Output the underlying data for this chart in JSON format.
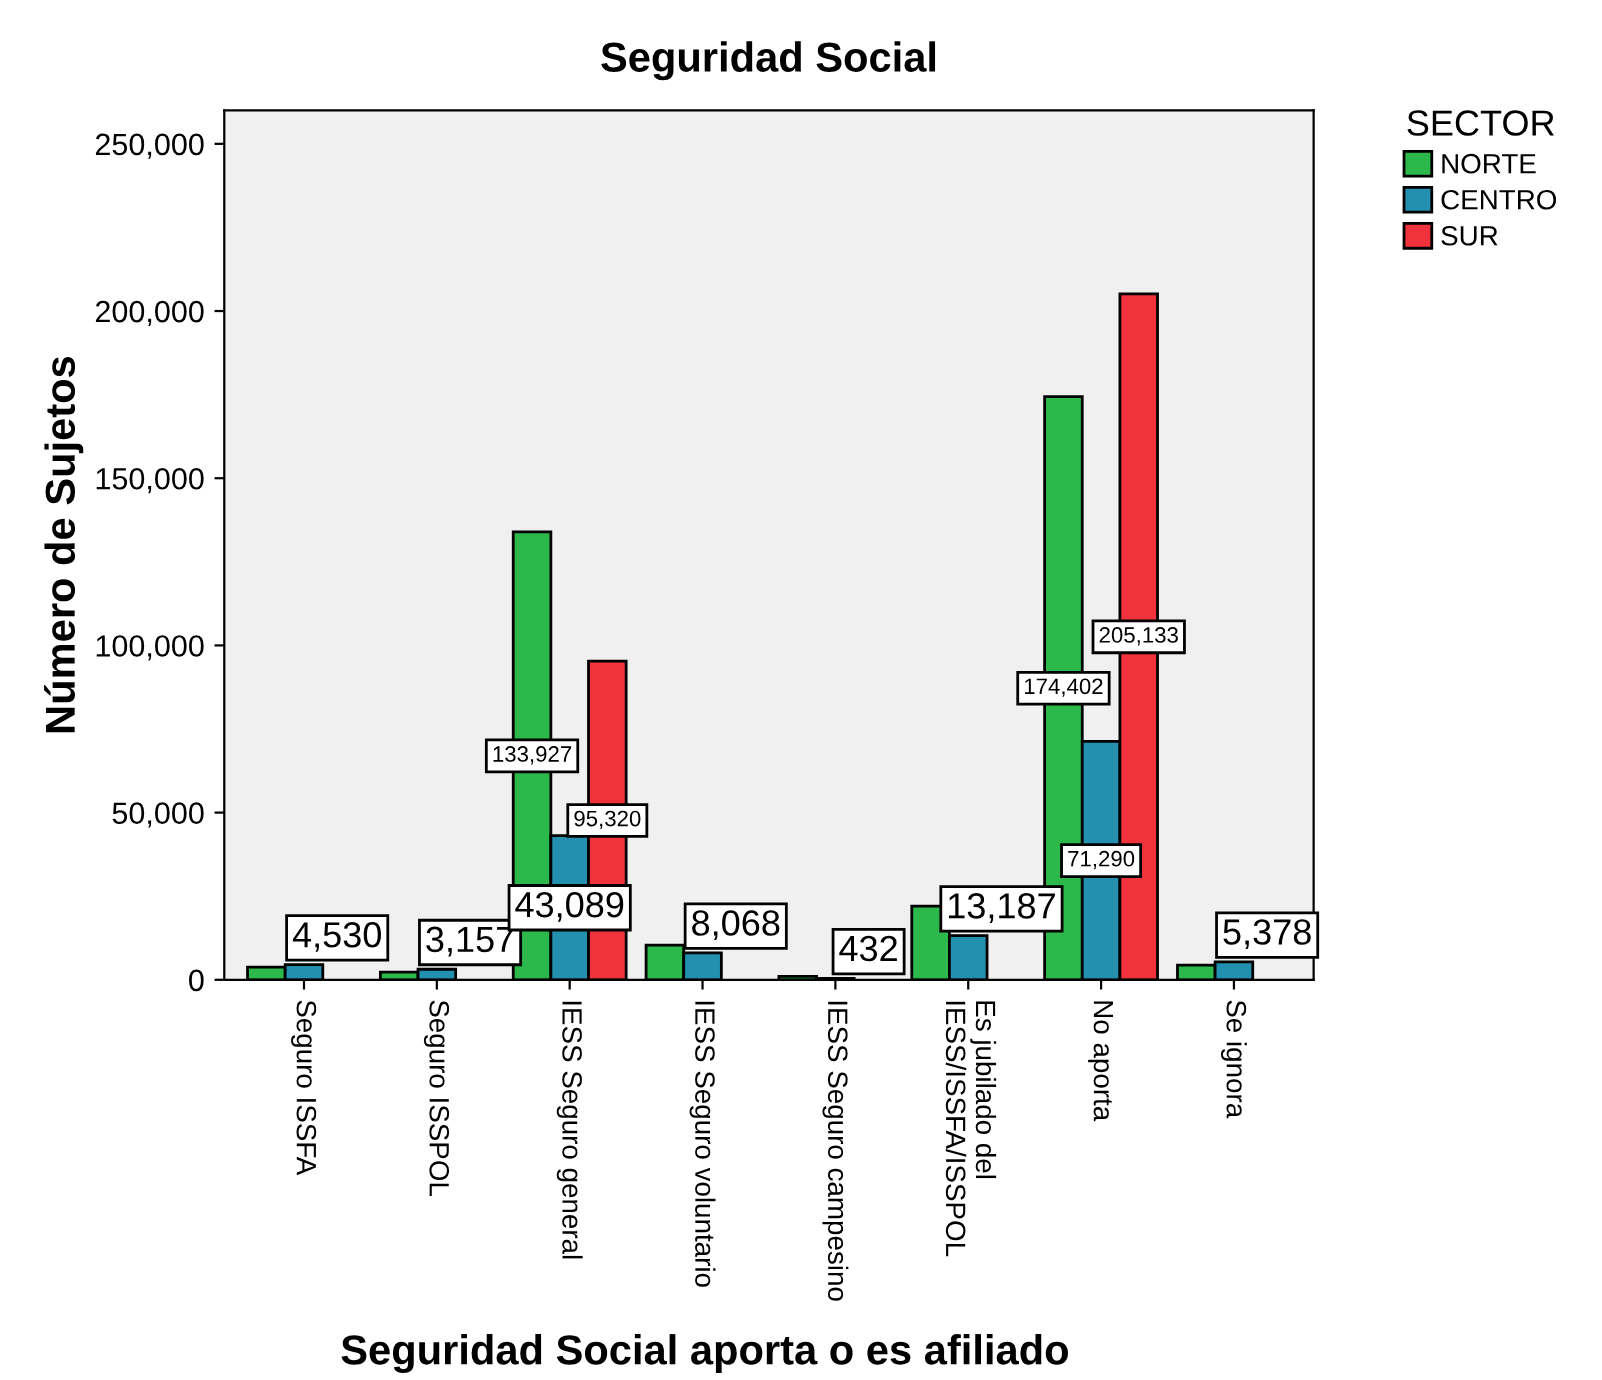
{
  "chart_data": {
    "type": "bar",
    "title": "Seguridad Social",
    "xlabel": "Seguridad Social aporta o es afiliado",
    "ylabel": "Número de Sujetos",
    "legend_title": "SECTOR",
    "legend": "top right",
    "categories": [
      "Seguro ISSFA",
      "Seguro ISSPOL",
      "IESS Seguro general",
      "IESS Seguro voluntario",
      "IESS Seguro campesino",
      "Es jubilado del IESS/ISSFA/ISSPOL",
      "No aporta",
      "Se ignora"
    ],
    "series": [
      {
        "name": "NORTE",
        "color": "#2db84b",
        "values": [
          3800,
          2300,
          133927,
          10400,
          1000,
          22000,
          174402,
          4400
        ],
        "value_labels": [
          null,
          null,
          "133,927",
          null,
          null,
          null,
          "174,402",
          null
        ]
      },
      {
        "name": "CENTRO",
        "color": "#2490b0",
        "values": [
          4530,
          3157,
          43089,
          8068,
          432,
          13187,
          71290,
          5378
        ],
        "value_labels": [
          "4,530",
          "3,157",
          "43,089",
          "8,068",
          "432",
          "13,187",
          "71,290",
          "5,378"
        ]
      },
      {
        "name": "SUR",
        "color": "#f0323c",
        "values": [
          null,
          null,
          95320,
          null,
          null,
          null,
          205133,
          null
        ],
        "value_labels": [
          null,
          null,
          "95,320",
          null,
          null,
          null,
          "205,133",
          null
        ]
      }
    ],
    "ylim": [
      0,
      260000
    ],
    "yticks": [
      {
        "value": 0,
        "label": "0"
      },
      {
        "value": 50000,
        "label": "50,000"
      },
      {
        "value": 100000,
        "label": "100,000"
      },
      {
        "value": 150000,
        "label": "150,000"
      },
      {
        "value": 200000,
        "label": "200,000"
      },
      {
        "value": 250000,
        "label": "250,000"
      }
    ],
    "grid": false
  }
}
